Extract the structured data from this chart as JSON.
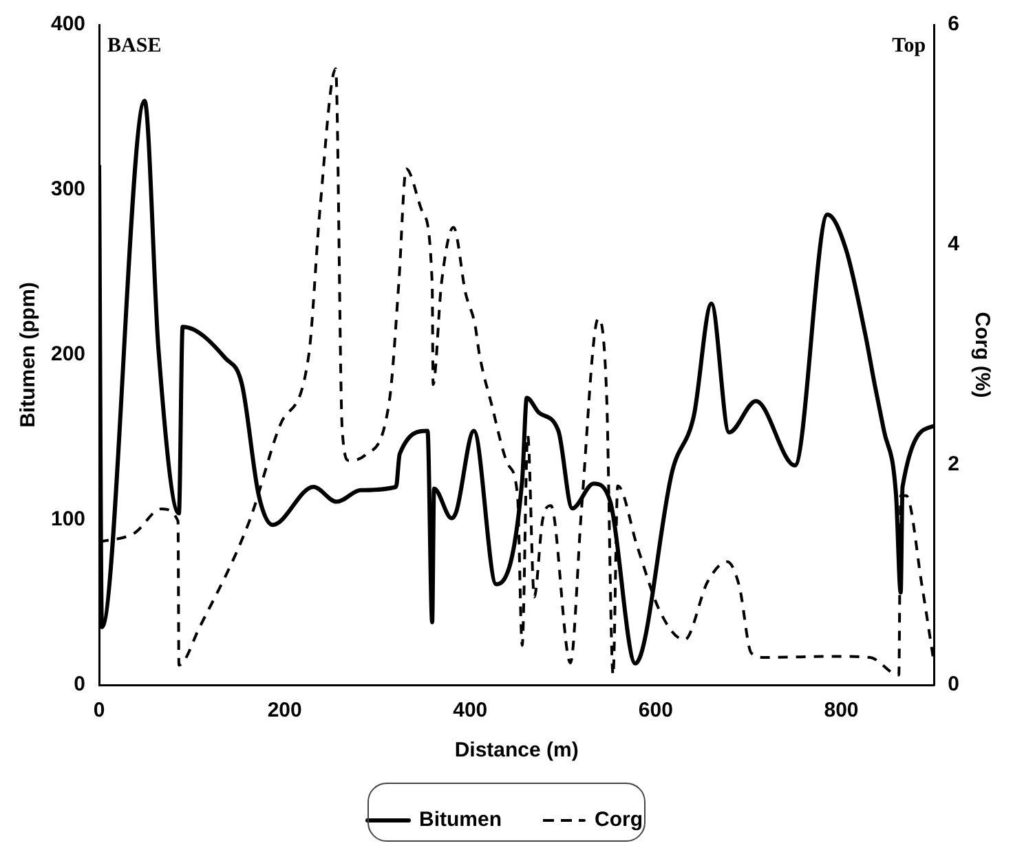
{
  "chart_data": {
    "type": "line",
    "xlabel": "Distance (m)",
    "ylabel": "Bitumen (ppm)",
    "y2label": "Corg (%)",
    "xlim": [
      0,
      900
    ],
    "xticks": [
      0,
      200,
      400,
      600,
      800
    ],
    "ylim": [
      0,
      400
    ],
    "yticks": [
      0,
      100,
      200,
      300,
      400
    ],
    "y2lim": [
      0,
      6
    ],
    "y2ticks": [
      0,
      2,
      4,
      6
    ],
    "grid": false,
    "legend": "bottom",
    "marker": "none",
    "annotations": [
      "BASE",
      "Top"
    ],
    "series": [
      {
        "name": "Bitumen",
        "color": "#000000",
        "line_style": "solid",
        "x": [
          0,
          3,
          49,
          64,
          86,
          90,
          136,
          154,
          172,
          187,
          231,
          256,
          282,
          320,
          324,
          354,
          359,
          361,
          380,
          385,
          404,
          428,
          456,
          461,
          474,
          495,
          510,
          533,
          551,
          578,
          618,
          641,
          660,
          679,
          708,
          750,
          785,
          805,
          826,
          836,
          846,
          859,
          864,
          866,
          900
        ],
        "values": [
          315,
          35,
          354,
          203,
          104,
          217,
          198,
          182,
          115,
          97,
          120,
          111,
          118,
          120,
          140,
          154,
          38,
          119,
          101,
          105,
          154,
          61,
          124,
          174,
          165,
          154,
          107,
          122,
          111,
          13,
          130,
          163,
          231,
          153,
          172,
          133,
          285,
          264,
          212,
          182,
          154,
          115,
          56,
          120,
          157
        ]
      },
      {
        "name": "Corg",
        "color": "#000000",
        "line_style": "dashed",
        "axis": "y2",
        "x": [
          0,
          38,
          67,
          85,
          86,
          108,
          162,
          195,
          226,
          238,
          255,
          262,
          269,
          287,
          313,
          323,
          331,
          349,
          359,
          360,
          369,
          382,
          395,
          405,
          410,
          423,
          441,
          451,
          456,
          462,
          469,
          478,
          487,
          508,
          520,
          538,
          547,
          554,
          559,
          580,
          605,
          631,
          656,
          677,
          690,
          703,
          718,
          795,
          831,
          862,
          864,
          870,
          887,
          899
        ],
        "values": [
          1.3,
          1.38,
          1.6,
          1.49,
          0.18,
          0.52,
          1.49,
          2.36,
          3.0,
          4.32,
          5.6,
          2.32,
          2.04,
          2.09,
          2.59,
          3.65,
          4.69,
          4.29,
          3.65,
          2.73,
          3.65,
          4.16,
          3.56,
          3.28,
          3.0,
          2.55,
          2.0,
          1.72,
          0.36,
          2.27,
          0.8,
          1.5,
          1.63,
          0.2,
          1.6,
          3.33,
          2.64,
          0.09,
          1.81,
          1.26,
          0.66,
          0.41,
          0.94,
          1.12,
          0.9,
          0.29,
          0.25,
          0.26,
          0.25,
          0.09,
          1.72,
          1.72,
          0.9,
          0.25
        ]
      }
    ]
  }
}
